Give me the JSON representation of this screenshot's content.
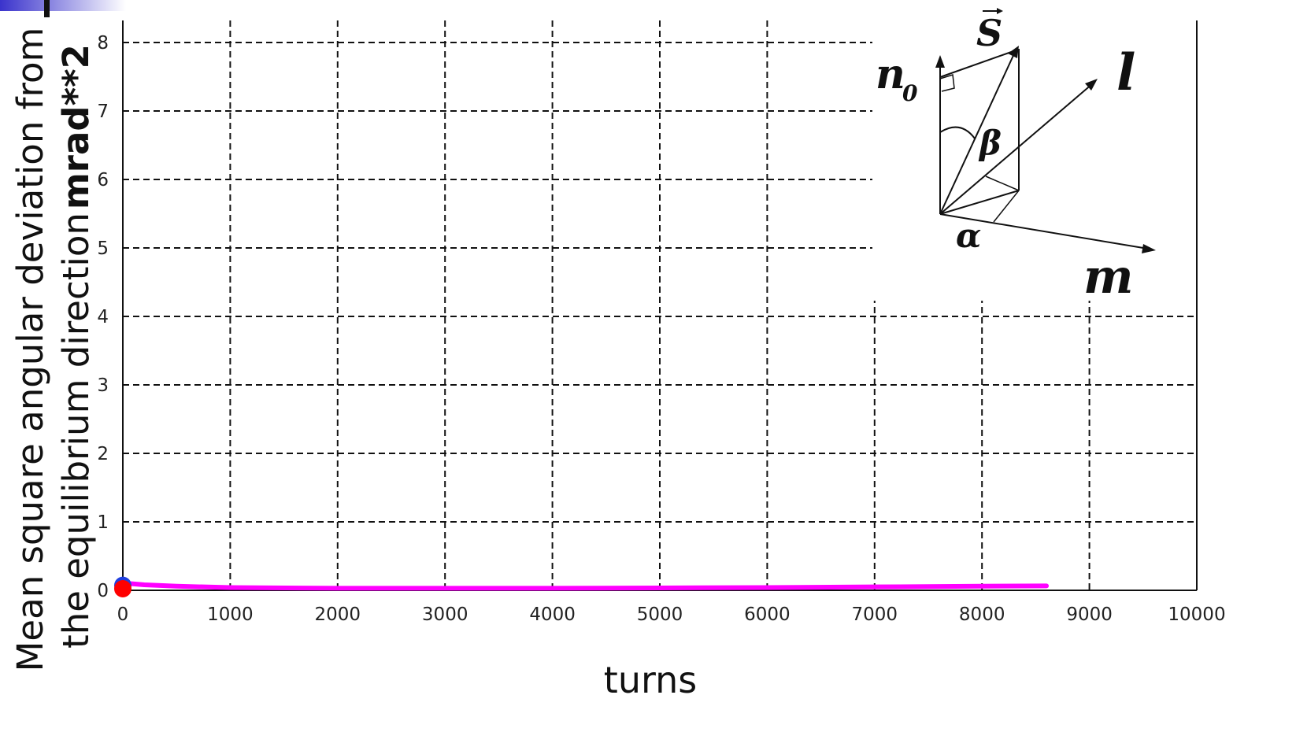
{
  "chart_data": {
    "type": "line",
    "xlabel": "turns",
    "ylabel_line1": "Mean square angular deviation from",
    "ylabel_line2_prefix": "the equilibrium direction",
    "ylabel_line2_units": "mrad**2",
    "xlim": [
      0,
      10000
    ],
    "ylim": [
      0,
      8.2
    ],
    "x_ticks": [
      "0",
      "1000",
      "2000",
      "3000",
      "4000",
      "5000",
      "6000",
      "7000",
      "8000",
      "9000",
      "10000"
    ],
    "y_ticks": [
      "0",
      "1",
      "2",
      "3",
      "4",
      "5",
      "6",
      "7",
      "8"
    ],
    "grid": true,
    "series": [
      {
        "color": "#ff00ff",
        "x": [
          0,
          50,
          200,
          500,
          1000,
          2000,
          3000,
          4000,
          5000,
          6000,
          7000,
          8000,
          8600
        ],
        "y": [
          0.08,
          0.1,
          0.08,
          0.06,
          0.04,
          0.03,
          0.03,
          0.03,
          0.035,
          0.04,
          0.05,
          0.06,
          0.065
        ]
      }
    ],
    "markers": [
      {
        "color": "#2040e0",
        "x": 0,
        "y": 0.05
      },
      {
        "color": "#ff0000",
        "x": 0,
        "y": 0.0
      }
    ]
  },
  "inset": {
    "labels": {
      "s": "S",
      "n0": "n",
      "n0_sub": "0",
      "l": "l",
      "m": "m",
      "beta": "β",
      "alpha": "α"
    }
  },
  "colors": {
    "corner_accent": "#3a33cc",
    "grid": "#111111",
    "series": "#ff00ff"
  }
}
